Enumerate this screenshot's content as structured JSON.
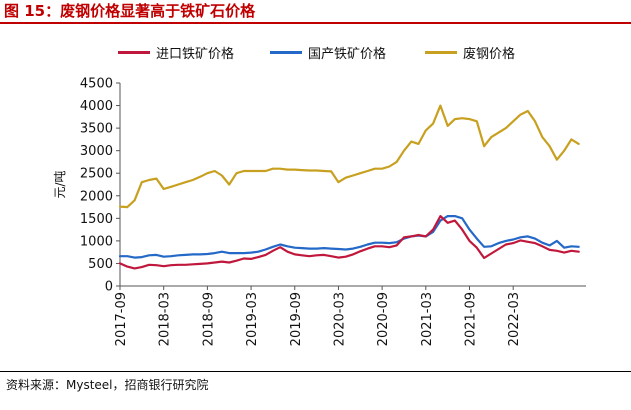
{
  "figure": {
    "title": "图 15：废钢价格显著高于铁矿石价格",
    "source": "资料来源：Mysteel，招商银行研究院"
  },
  "colors": {
    "title": "#c00000",
    "import_ore": "#c0183c",
    "domestic_ore": "#2468c8",
    "scrap": "#c8a020"
  },
  "chart_data": {
    "type": "line",
    "ylabel": "元/吨",
    "xlabel": "",
    "ylim": [
      0,
      4500
    ],
    "yticks": [
      0,
      500,
      1000,
      1500,
      2000,
      2500,
      3000,
      3500,
      4000,
      4500
    ],
    "xlim": [
      "2017-09",
      "2023-01"
    ],
    "xticks": [
      "2017-09",
      "2018-03",
      "2018-09",
      "2019-03",
      "2019-09",
      "2020-03",
      "2020-09",
      "2021-03",
      "2021-09",
      "2022-03"
    ],
    "grid": false,
    "legend_position": "top",
    "series": [
      {
        "name": "进口铁矿价格",
        "color_key": "import_ore",
        "points": [
          [
            "2017-09",
            500
          ],
          [
            "2017-10",
            430
          ],
          [
            "2017-11",
            390
          ],
          [
            "2017-12",
            420
          ],
          [
            "2018-01",
            470
          ],
          [
            "2018-02",
            460
          ],
          [
            "2018-03",
            440
          ],
          [
            "2018-04",
            460
          ],
          [
            "2018-05",
            470
          ],
          [
            "2018-06",
            470
          ],
          [
            "2018-07",
            480
          ],
          [
            "2018-08",
            490
          ],
          [
            "2018-09",
            500
          ],
          [
            "2018-10",
            520
          ],
          [
            "2018-11",
            540
          ],
          [
            "2018-12",
            520
          ],
          [
            "2019-01",
            560
          ],
          [
            "2019-02",
            610
          ],
          [
            "2019-03",
            600
          ],
          [
            "2019-04",
            640
          ],
          [
            "2019-05",
            690
          ],
          [
            "2019-06",
            780
          ],
          [
            "2019-07",
            860
          ],
          [
            "2019-08",
            760
          ],
          [
            "2019-09",
            700
          ],
          [
            "2019-10",
            680
          ],
          [
            "2019-11",
            660
          ],
          [
            "2019-12",
            680
          ],
          [
            "2020-01",
            690
          ],
          [
            "2020-02",
            660
          ],
          [
            "2020-03",
            630
          ],
          [
            "2020-04",
            650
          ],
          [
            "2020-05",
            700
          ],
          [
            "2020-06",
            770
          ],
          [
            "2020-07",
            830
          ],
          [
            "2020-08",
            880
          ],
          [
            "2020-09",
            880
          ],
          [
            "2020-10",
            860
          ],
          [
            "2020-11",
            900
          ],
          [
            "2020-12",
            1080
          ],
          [
            "2021-01",
            1100
          ],
          [
            "2021-02",
            1130
          ],
          [
            "2021-03",
            1100
          ],
          [
            "2021-04",
            1250
          ],
          [
            "2021-05",
            1550
          ],
          [
            "2021-06",
            1400
          ],
          [
            "2021-07",
            1450
          ],
          [
            "2021-08",
            1250
          ],
          [
            "2021-09",
            1000
          ],
          [
            "2021-10",
            850
          ],
          [
            "2021-11",
            620
          ],
          [
            "2021-12",
            720
          ],
          [
            "2022-01",
            820
          ],
          [
            "2022-02",
            920
          ],
          [
            "2022-03",
            950
          ],
          [
            "2022-04",
            1010
          ],
          [
            "2022-05",
            980
          ],
          [
            "2022-06",
            950
          ],
          [
            "2022-07",
            880
          ],
          [
            "2022-08",
            800
          ],
          [
            "2022-09",
            780
          ],
          [
            "2022-10",
            740
          ],
          [
            "2022-11",
            780
          ],
          [
            "2022-12",
            760
          ]
        ]
      },
      {
        "name": "国产铁矿价格",
        "color_key": "domestic_ore",
        "points": [
          [
            "2017-09",
            660
          ],
          [
            "2017-10",
            660
          ],
          [
            "2017-11",
            630
          ],
          [
            "2017-12",
            640
          ],
          [
            "2018-01",
            680
          ],
          [
            "2018-02",
            690
          ],
          [
            "2018-03",
            650
          ],
          [
            "2018-04",
            660
          ],
          [
            "2018-05",
            680
          ],
          [
            "2018-06",
            690
          ],
          [
            "2018-07",
            700
          ],
          [
            "2018-08",
            700
          ],
          [
            "2018-09",
            710
          ],
          [
            "2018-10",
            730
          ],
          [
            "2018-11",
            760
          ],
          [
            "2018-12",
            730
          ],
          [
            "2019-01",
            730
          ],
          [
            "2019-02",
            730
          ],
          [
            "2019-03",
            740
          ],
          [
            "2019-04",
            760
          ],
          [
            "2019-05",
            810
          ],
          [
            "2019-06",
            870
          ],
          [
            "2019-07",
            920
          ],
          [
            "2019-08",
            880
          ],
          [
            "2019-09",
            850
          ],
          [
            "2019-10",
            840
          ],
          [
            "2019-11",
            830
          ],
          [
            "2019-12",
            830
          ],
          [
            "2020-01",
            840
          ],
          [
            "2020-02",
            830
          ],
          [
            "2020-03",
            820
          ],
          [
            "2020-04",
            810
          ],
          [
            "2020-05",
            830
          ],
          [
            "2020-06",
            870
          ],
          [
            "2020-07",
            920
          ],
          [
            "2020-08",
            960
          ],
          [
            "2020-09",
            960
          ],
          [
            "2020-10",
            950
          ],
          [
            "2020-11",
            970
          ],
          [
            "2020-12",
            1050
          ],
          [
            "2021-01",
            1100
          ],
          [
            "2021-02",
            1120
          ],
          [
            "2021-03",
            1100
          ],
          [
            "2021-04",
            1200
          ],
          [
            "2021-05",
            1450
          ],
          [
            "2021-06",
            1550
          ],
          [
            "2021-07",
            1550
          ],
          [
            "2021-08",
            1500
          ],
          [
            "2021-09",
            1250
          ],
          [
            "2021-10",
            1050
          ],
          [
            "2021-11",
            870
          ],
          [
            "2021-12",
            880
          ],
          [
            "2022-01",
            950
          ],
          [
            "2022-02",
            1000
          ],
          [
            "2022-03",
            1030
          ],
          [
            "2022-04",
            1080
          ],
          [
            "2022-05",
            1100
          ],
          [
            "2022-06",
            1050
          ],
          [
            "2022-07",
            960
          ],
          [
            "2022-08",
            900
          ],
          [
            "2022-09",
            1000
          ],
          [
            "2022-10",
            850
          ],
          [
            "2022-11",
            880
          ],
          [
            "2022-12",
            870
          ]
        ]
      },
      {
        "name": "废钢价格",
        "color_key": "scrap",
        "points": [
          [
            "2017-09",
            1760
          ],
          [
            "2017-10",
            1750
          ],
          [
            "2017-11",
            1900
          ],
          [
            "2017-12",
            2300
          ],
          [
            "2018-01",
            2350
          ],
          [
            "2018-02",
            2380
          ],
          [
            "2018-03",
            2150
          ],
          [
            "2018-04",
            2200
          ],
          [
            "2018-05",
            2250
          ],
          [
            "2018-06",
            2300
          ],
          [
            "2018-07",
            2350
          ],
          [
            "2018-08",
            2420
          ],
          [
            "2018-09",
            2500
          ],
          [
            "2018-10",
            2550
          ],
          [
            "2018-11",
            2450
          ],
          [
            "2018-12",
            2250
          ],
          [
            "2019-01",
            2500
          ],
          [
            "2019-02",
            2550
          ],
          [
            "2019-03",
            2550
          ],
          [
            "2019-04",
            2550
          ],
          [
            "2019-05",
            2550
          ],
          [
            "2019-06",
            2600
          ],
          [
            "2019-07",
            2600
          ],
          [
            "2019-08",
            2580
          ],
          [
            "2019-09",
            2580
          ],
          [
            "2019-10",
            2570
          ],
          [
            "2019-11",
            2560
          ],
          [
            "2019-12",
            2560
          ],
          [
            "2020-01",
            2550
          ],
          [
            "2020-02",
            2540
          ],
          [
            "2020-03",
            2300
          ],
          [
            "2020-04",
            2400
          ],
          [
            "2020-05",
            2450
          ],
          [
            "2020-06",
            2500
          ],
          [
            "2020-07",
            2550
          ],
          [
            "2020-08",
            2600
          ],
          [
            "2020-09",
            2600
          ],
          [
            "2020-10",
            2650
          ],
          [
            "2020-11",
            2750
          ],
          [
            "2020-12",
            3000
          ],
          [
            "2021-01",
            3200
          ],
          [
            "2021-02",
            3150
          ],
          [
            "2021-03",
            3450
          ],
          [
            "2021-04",
            3600
          ],
          [
            "2021-05",
            4000
          ],
          [
            "2021-06",
            3550
          ],
          [
            "2021-07",
            3700
          ],
          [
            "2021-08",
            3720
          ],
          [
            "2021-09",
            3700
          ],
          [
            "2021-10",
            3650
          ],
          [
            "2021-11",
            3100
          ],
          [
            "2021-12",
            3300
          ],
          [
            "2022-01",
            3400
          ],
          [
            "2022-02",
            3500
          ],
          [
            "2022-03",
            3650
          ],
          [
            "2022-04",
            3800
          ],
          [
            "2022-05",
            3880
          ],
          [
            "2022-06",
            3650
          ],
          [
            "2022-07",
            3300
          ],
          [
            "2022-08",
            3100
          ],
          [
            "2022-09",
            2800
          ],
          [
            "2022-10",
            3000
          ],
          [
            "2022-11",
            3250
          ],
          [
            "2022-12",
            3150
          ]
        ]
      }
    ]
  }
}
